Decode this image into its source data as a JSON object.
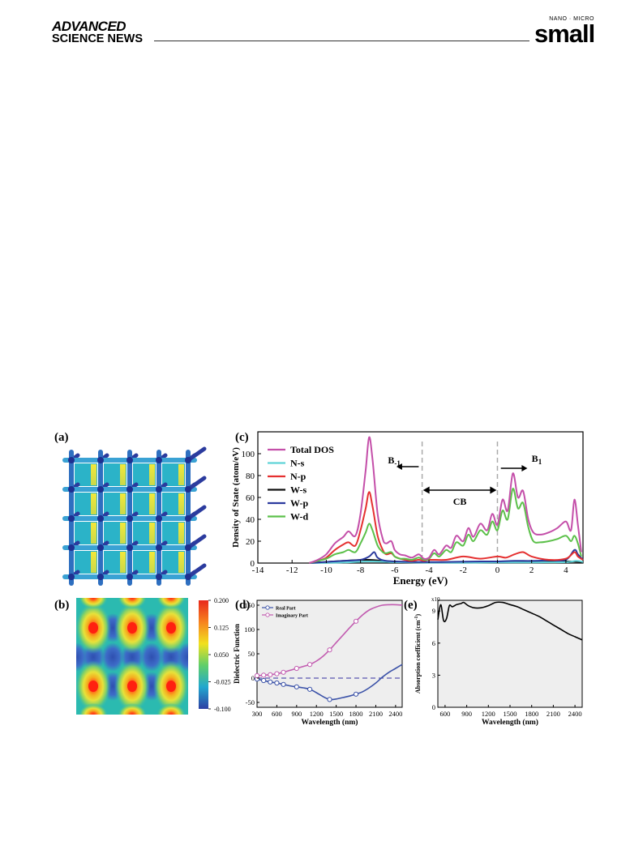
{
  "header": {
    "brand_line1": "ADVANCED",
    "brand_line2": "SCIENCE NEWS",
    "journal_kicker": "NANO · MICRO",
    "journal_name": "small"
  },
  "colors": {
    "total_dos": "#c44fa9",
    "n_s": "#5fd3d8",
    "n_p": "#e53030",
    "w_s": "#111111",
    "w_p": "#2b3a9e",
    "w_d": "#5cc04a",
    "real_part": "#3b52a8",
    "imag_part": "#c25cb0",
    "plot_bg": "#eeeeee"
  },
  "figure": {
    "panel_a": {
      "label": "(a)"
    },
    "panel_b": {
      "label": "(b)",
      "colorbar_ticks": [
        "0.200",
        "0.125",
        "0.050",
        "-0.025",
        "-0.100"
      ]
    },
    "panel_c": {
      "label": "(c)",
      "chart_data": {
        "type": "line",
        "xlabel": "Energy (eV)",
        "ylabel": "Density of State (atom/eV)",
        "xlim": [
          -14,
          5
        ],
        "ylim": [
          0,
          120
        ],
        "x_ticks": [
          "-14",
          "-12",
          "-10",
          "-8",
          "-6",
          "-4",
          "-2",
          "0",
          "2",
          "4"
        ],
        "y_ticks": [
          "0",
          "20",
          "40",
          "60",
          "80",
          "100"
        ],
        "legend": [
          "Total  DOS",
          "N-s",
          "N-p",
          "W-s",
          "W-p",
          "W-d"
        ],
        "legend_position": "top-left",
        "annotations": {
          "b_minus": "B",
          "b_minus_sub": "-1",
          "cb": "CB",
          "b_plus": "B",
          "b_plus_sub": "1"
        },
        "series": [
          {
            "name": "Total  DOS",
            "x": [
              -11,
              -10.5,
              -10,
              -9.5,
              -9,
              -8.7,
              -8.3,
              -8,
              -7.7,
              -7.5,
              -7.3,
              -7,
              -6.7,
              -6.5,
              -6.2,
              -6,
              -5.7,
              -5.4,
              -5,
              -4.6,
              -4.3,
              -4,
              -3.7,
              -3.4,
              -3,
              -2.7,
              -2.4,
              -2,
              -1.7,
              -1.4,
              -1,
              -0.6,
              -0.3,
              0,
              0.3,
              0.6,
              0.9,
              1.2,
              1.5,
              1.8,
              2.1,
              2.5,
              3,
              3.5,
              4,
              4.3,
              4.5,
              4.7,
              4.9
            ],
            "y": [
              0,
              3,
              8,
              18,
              24,
              29,
              25,
              45,
              85,
              115,
              95,
              45,
              22,
              18,
              20,
              12,
              8,
              7,
              5,
              8,
              4,
              5,
              12,
              8,
              16,
              14,
              25,
              20,
              32,
              24,
              36,
              30,
              45,
              35,
              58,
              48,
              82,
              60,
              66,
              40,
              28,
              26,
              28,
              32,
              38,
              30,
              58,
              35,
              10
            ]
          },
          {
            "name": "N-s",
            "x": [
              -11,
              -9,
              -7.5,
              -6,
              -4,
              -2,
              0,
              2,
              4,
              4.6,
              5
            ],
            "y": [
              0,
              0.5,
              1.5,
              0.8,
              0.4,
              0.3,
              0.5,
              0.6,
              0.8,
              2,
              1
            ]
          },
          {
            "name": "N-p",
            "x": [
              -11,
              -10.5,
              -10,
              -9.5,
              -9,
              -8.7,
              -8.3,
              -8,
              -7.7,
              -7.5,
              -7.3,
              -7,
              -6.7,
              -6.5,
              -6.2,
              -6,
              -5.7,
              -5.4,
              -5,
              -4.6,
              -4.3,
              -4,
              -3,
              -2,
              -1,
              0,
              0.5,
              1,
              1.5,
              2,
              3,
              4,
              4.5,
              4.7,
              5
            ],
            "y": [
              0,
              2,
              5,
              12,
              17,
              19,
              16,
              30,
              50,
              65,
              52,
              25,
              12,
              8,
              9,
              6,
              4,
              3,
              2,
              3,
              2,
              3,
              3,
              6,
              4,
              6,
              5,
              8,
              10,
              6,
              3,
              4,
              10,
              6,
              3
            ]
          },
          {
            "name": "W-s",
            "x": [
              -11,
              -10,
              -9,
              -7.5,
              -6,
              -4,
              -2,
              0,
              2,
              4,
              5
            ],
            "y": [
              0,
              1,
              2,
              3,
              1,
              0.5,
              0.5,
              0.5,
              0.8,
              1.5,
              1
            ]
          },
          {
            "name": "W-p",
            "x": [
              -11,
              -10,
              -9,
              -8,
              -7.5,
              -7.2,
              -7,
              -6.5,
              -5,
              -3,
              -1,
              0,
              1,
              2,
              3,
              4,
              4.5,
              4.7,
              5
            ],
            "y": [
              0,
              1,
              2,
              3,
              6,
              10,
              5,
              2,
              1,
              1,
              1.5,
              1.5,
              2,
              2,
              2.5,
              3,
              12,
              8,
              3
            ]
          },
          {
            "name": "W-d",
            "x": [
              -11,
              -10.5,
              -10,
              -9.5,
              -9,
              -8.7,
              -8.3,
              -8,
              -7.7,
              -7.5,
              -7.3,
              -7,
              -6.7,
              -6.5,
              -6.2,
              -6,
              -5.7,
              -5.4,
              -5,
              -4.6,
              -4.3,
              -4,
              -3.7,
              -3.4,
              -3,
              -2.7,
              -2.4,
              -2,
              -1.7,
              -1.4,
              -1,
              -0.6,
              -0.3,
              0,
              0.3,
              0.6,
              0.9,
              1.2,
              1.5,
              1.8,
              2.1,
              2.5,
              3,
              3.5,
              4,
              4.3,
              4.5,
              4.7,
              4.9
            ],
            "y": [
              0,
              2,
              4,
              8,
              10,
              12,
              10,
              18,
              28,
              36,
              30,
              16,
              10,
              9,
              10,
              6,
              4,
              4,
              3,
              5,
              3,
              4,
              9,
              6,
              12,
              10,
              19,
              16,
              26,
              20,
              30,
              26,
              38,
              30,
              48,
              40,
              68,
              50,
              55,
              33,
              20,
              19,
              20,
              22,
              25,
              20,
              25,
              18,
              6
            ]
          }
        ]
      }
    },
    "panel_d": {
      "label": "(d)",
      "chart_data": {
        "type": "line",
        "xlabel": "Wavelength (nm)",
        "ylabel": "Dielectric Function",
        "xlim": [
          300,
          2500
        ],
        "ylim": [
          -60,
          160
        ],
        "x_ticks": [
          "300",
          "600",
          "900",
          "1200",
          "1500",
          "1800",
          "2100",
          "2400"
        ],
        "y_ticks": [
          "-50",
          "0",
          "50",
          "100",
          "150"
        ],
        "legend": [
          "Real Part",
          "Imaginary Part"
        ],
        "legend_position": "top-left",
        "series": [
          {
            "name": "Real Part",
            "x": [
              300,
              400,
              500,
              600,
              700,
              800,
              900,
              1000,
              1100,
              1200,
              1300,
              1400,
              1500,
              1600,
              1700,
              1800,
              1900,
              2000,
              2100,
              2200,
              2300,
              2400,
              2500
            ],
            "y": [
              -2,
              -5,
              -8,
              -10,
              -13,
              -16,
              -18,
              -20,
              -23,
              -30,
              -38,
              -44,
              -43,
              -40,
              -37,
              -33,
              -28,
              -20,
              -10,
              2,
              12,
              20,
              28
            ]
          },
          {
            "name": "Imaginary Part",
            "x": [
              300,
              400,
              500,
              600,
              700,
              800,
              900,
              1000,
              1100,
              1200,
              1300,
              1400,
              1500,
              1600,
              1700,
              1800,
              1900,
              2000,
              2100,
              2200,
              2300,
              2400,
              2500
            ],
            "y": [
              5,
              6,
              7,
              9,
              12,
              16,
              20,
              24,
              28,
              35,
              45,
              58,
              73,
              88,
              103,
              117,
              130,
              140,
              146,
              150,
              151,
              151,
              150
            ]
          }
        ],
        "zero_line": 0
      }
    },
    "panel_e": {
      "label": "(e)",
      "chart_data": {
        "type": "line",
        "xlabel": "Wavelength (nm)",
        "ylabel": "Absorption coefficient (cm",
        "ylabel_exp": "-1",
        "ylabel_close": ")",
        "y_scale_exp": "x10",
        "xlim": [
          500,
          2500
        ],
        "ylim": [
          0,
          10
        ],
        "x_ticks": [
          "600",
          "900",
          "1200",
          "1500",
          "1800",
          "2100",
          "2400"
        ],
        "y_ticks": [
          "0",
          "3",
          "6",
          "9"
        ],
        "series": [
          {
            "name": "",
            "x": [
              500,
              540,
              580,
              620,
              660,
              700,
              760,
              820,
              860,
              920,
              1000,
              1100,
              1200,
              1300,
              1400,
              1500,
              1600,
              1700,
              1800,
              1900,
              2000,
              2100,
              2200,
              2300,
              2400,
              2500
            ],
            "y": [
              8.2,
              9.6,
              8.1,
              8.3,
              9.5,
              9.4,
              9.6,
              9.7,
              9.8,
              9.5,
              9.3,
              9.3,
              9.5,
              9.8,
              9.8,
              9.6,
              9.4,
              9.1,
              8.8,
              8.5,
              8.1,
              7.7,
              7.3,
              6.9,
              6.6,
              6.3
            ]
          }
        ]
      }
    }
  }
}
